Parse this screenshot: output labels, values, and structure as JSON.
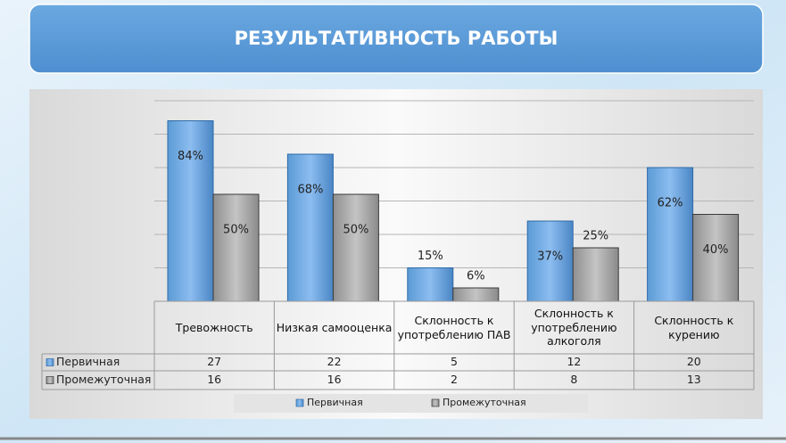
{
  "chart_data": {
    "type": "bar",
    "title": "РЕЗУЛЬТАТИВНОСТЬ РАБОТЫ",
    "categories": [
      "Тревожность",
      "Низкая самооценка",
      "Склонность к употреблению ПАВ",
      "Склонность к употреблению алкоголя",
      "Склонность к курению"
    ],
    "series": [
      {
        "name": "Первичная",
        "color": "#5b9bd5",
        "values": [
          27,
          22,
          5,
          12,
          20
        ],
        "data_labels": [
          "84%",
          "68%",
          "15%",
          "37%",
          "62%"
        ]
      },
      {
        "name": "Промежуточная",
        "color": "#a5a5a5",
        "values": [
          16,
          16,
          2,
          8,
          13
        ],
        "data_labels": [
          "50%",
          "50%",
          "6%",
          "25%",
          "40%"
        ]
      }
    ],
    "ylim": [
      0,
      30
    ],
    "yticks": [
      0,
      5,
      10,
      15,
      20,
      25,
      30
    ],
    "grid": true,
    "legend": "bottom"
  }
}
